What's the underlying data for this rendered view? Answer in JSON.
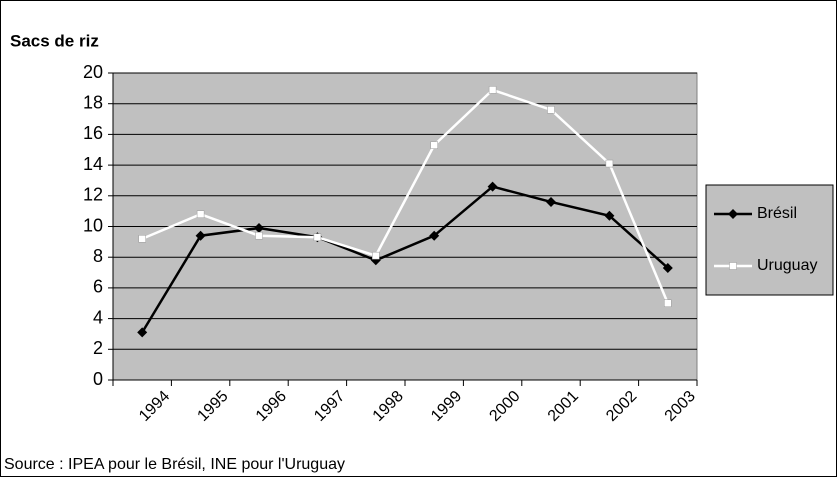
{
  "chart_data": {
    "type": "line",
    "y_label": "Sacs de riz",
    "source": "Source : IPEA pour le Brésil, INE pour l'Uruguay",
    "categories": [
      "1994",
      "1995",
      "1996",
      "1997",
      "1998",
      "1999",
      "2000",
      "2001",
      "2002",
      "2003"
    ],
    "series": [
      {
        "name": "Brésil",
        "color": "#000000",
        "values": [
          3.1,
          9.4,
          9.9,
          9.3,
          7.8,
          9.4,
          12.6,
          11.6,
          10.7,
          7.3
        ]
      },
      {
        "name": "Uruguay",
        "color": "#ffffff",
        "values": [
          9.2,
          10.8,
          9.4,
          9.3,
          8.1,
          15.3,
          18.9,
          17.6,
          14.1,
          5.0
        ]
      }
    ],
    "ylim": [
      0,
      20
    ],
    "yticks": [
      0,
      2,
      4,
      6,
      8,
      10,
      12,
      14,
      16,
      18,
      20
    ],
    "grid": true,
    "legend": "right",
    "plot_background": "#c0c0c0"
  }
}
